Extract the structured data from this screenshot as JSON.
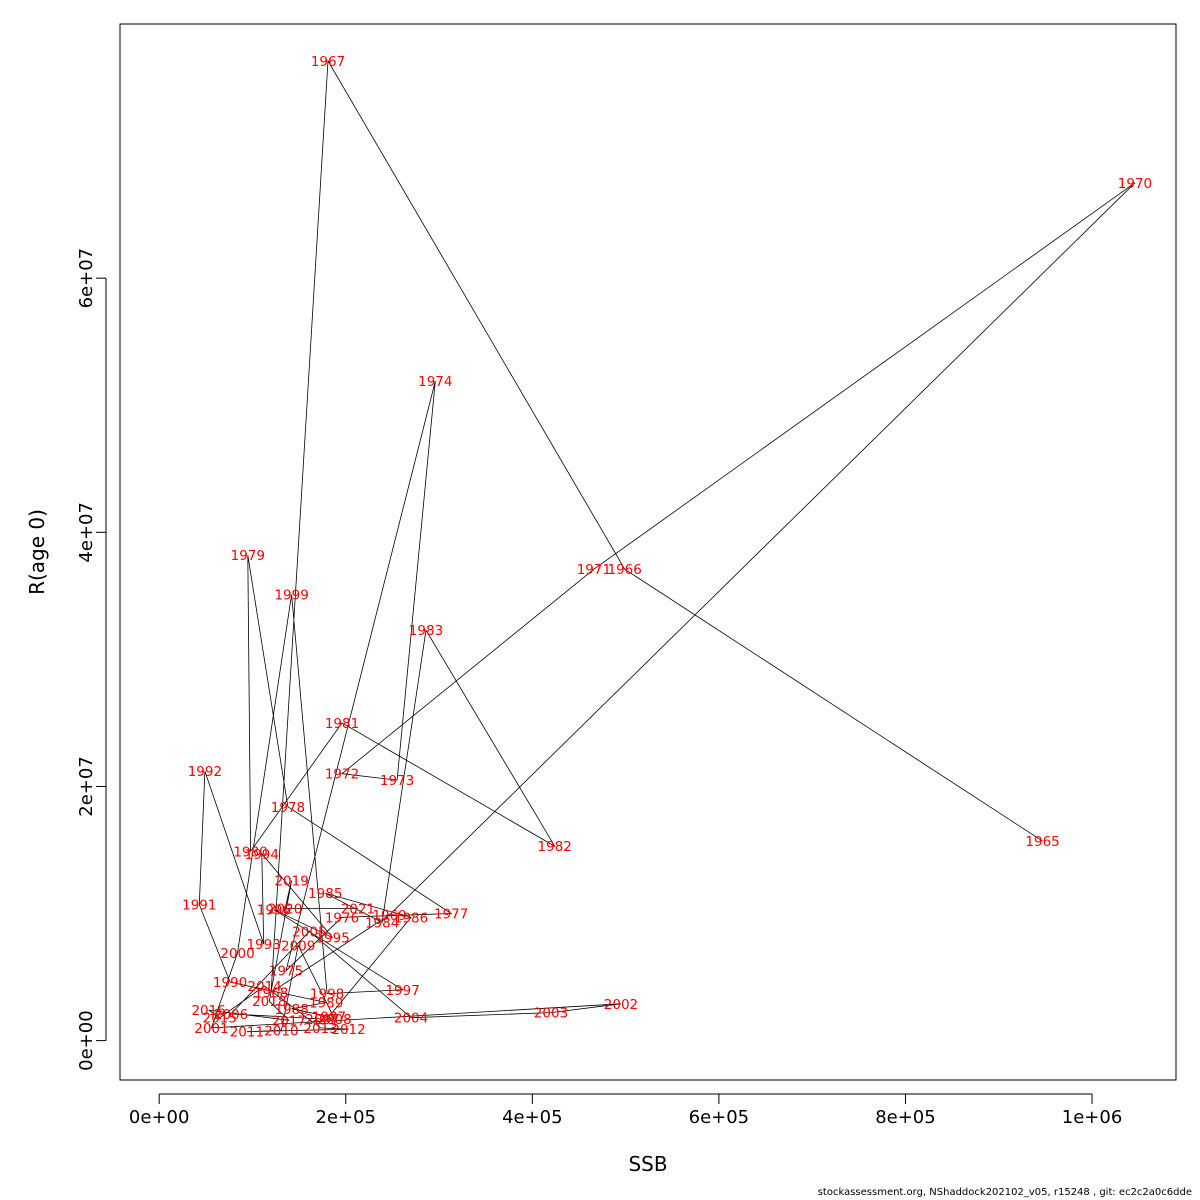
{
  "chart_data": {
    "type": "scatter",
    "connected": true,
    "xlabel": "SSB",
    "ylabel": "R(age 0)",
    "xlim": [
      -42000,
      1090000
    ],
    "ylim": [
      -3100000,
      80000000
    ],
    "x_ticks": [
      0,
      200000,
      400000,
      600000,
      800000,
      1000000
    ],
    "x_tick_labels": [
      "0e+00",
      "2e+05",
      "4e+05",
      "6e+05",
      "8e+05",
      "1e+06"
    ],
    "y_ticks": [
      0,
      20000000,
      40000000,
      60000000
    ],
    "y_tick_labels": [
      "0e+00",
      "2e+07",
      "4e+07",
      "6e+07"
    ],
    "grid": false,
    "line_color": "#000000",
    "label_color": "#ff0000",
    "points": [
      {
        "year": "1965",
        "ssb": 947000,
        "r": 15700000
      },
      {
        "year": "1966",
        "ssb": 499000,
        "r": 37100000
      },
      {
        "year": "1967",
        "ssb": 181000,
        "r": 77100000
      },
      {
        "year": "1968",
        "ssb": 120000,
        "r": 3800000
      },
      {
        "year": "1969",
        "ssb": 247000,
        "r": 9900000
      },
      {
        "year": "1970",
        "ssb": 1046000,
        "r": 67500000
      },
      {
        "year": "1971",
        "ssb": 466000,
        "r": 37100000
      },
      {
        "year": "1972",
        "ssb": 196000,
        "r": 21000000
      },
      {
        "year": "1973",
        "ssb": 255000,
        "r": 20500000
      },
      {
        "year": "1974",
        "ssb": 296000,
        "r": 51900000
      },
      {
        "year": "1975",
        "ssb": 136000,
        "r": 5500000
      },
      {
        "year": "1976",
        "ssb": 196000,
        "r": 9700000
      },
      {
        "year": "1977",
        "ssb": 313000,
        "r": 10000000
      },
      {
        "year": "1978",
        "ssb": 138000,
        "r": 18400000
      },
      {
        "year": "1979",
        "ssb": 95000,
        "r": 38200000
      },
      {
        "year": "1980",
        "ssb": 98000,
        "r": 14900000
      },
      {
        "year": "1981",
        "ssb": 196000,
        "r": 25000000
      },
      {
        "year": "1982",
        "ssb": 424000,
        "r": 15300000
      },
      {
        "year": "1983",
        "ssb": 286000,
        "r": 32300000
      },
      {
        "year": "1984",
        "ssb": 239000,
        "r": 9300000
      },
      {
        "year": "1985",
        "ssb": 178000,
        "r": 11600000
      },
      {
        "year": "1986",
        "ssb": 270000,
        "r": 9700000
      },
      {
        "year": "1987",
        "ssb": 182000,
        "r": 1900000
      },
      {
        "year": "1988",
        "ssb": 142000,
        "r": 2500000
      },
      {
        "year": "1989",
        "ssb": 179000,
        "r": 3000000
      },
      {
        "year": "1990",
        "ssb": 76000,
        "r": 4600000
      },
      {
        "year": "1991",
        "ssb": 43000,
        "r": 10700000
      },
      {
        "year": "1992",
        "ssb": 49000,
        "r": 21200000
      },
      {
        "year": "1993",
        "ssb": 112000,
        "r": 7600000
      },
      {
        "year": "1994",
        "ssb": 110000,
        "r": 14700000
      },
      {
        "year": "1995",
        "ssb": 186000,
        "r": 8100000
      },
      {
        "year": "1996",
        "ssb": 123000,
        "r": 10300000
      },
      {
        "year": "1997",
        "ssb": 261000,
        "r": 4000000
      },
      {
        "year": "1998",
        "ssb": 180000,
        "r": 3700000
      },
      {
        "year": "1999",
        "ssb": 142000,
        "r": 35100000
      },
      {
        "year": "2000",
        "ssb": 84000,
        "r": 6900000
      },
      {
        "year": "2001",
        "ssb": 56000,
        "r": 1000000
      },
      {
        "year": "2002",
        "ssb": 495000,
        "r": 2900000
      },
      {
        "year": "2003",
        "ssb": 420000,
        "r": 2200000
      },
      {
        "year": "2004",
        "ssb": 270000,
        "r": 1800000
      },
      {
        "year": "2005",
        "ssb": 161000,
        "r": 8600000
      },
      {
        "year": "2006",
        "ssb": 77000,
        "r": 2100000
      },
      {
        "year": "2007",
        "ssb": 175000,
        "r": 1700000
      },
      {
        "year": "2008",
        "ssb": 188000,
        "r": 1700000
      },
      {
        "year": "2009",
        "ssb": 149000,
        "r": 7500000
      },
      {
        "year": "2010",
        "ssb": 131000,
        "r": 800000
      },
      {
        "year": "2011",
        "ssb": 94000,
        "r": 700000
      },
      {
        "year": "2012",
        "ssb": 203000,
        "r": 900000
      },
      {
        "year": "2013",
        "ssb": 173000,
        "r": 1000000
      },
      {
        "year": "2014",
        "ssb": 113000,
        "r": 4300000
      },
      {
        "year": "2015",
        "ssb": 65000,
        "r": 1800000
      },
      {
        "year": "2016",
        "ssb": 53000,
        "r": 2400000
      },
      {
        "year": "2017",
        "ssb": 139000,
        "r": 1600000
      },
      {
        "year": "2018",
        "ssb": 118000,
        "r": 3100000
      },
      {
        "year": "2019",
        "ssb": 142000,
        "r": 12600000
      },
      {
        "year": "2020",
        "ssb": 135000,
        "r": 10400000
      },
      {
        "year": "2021",
        "ssb": 213000,
        "r": 10400000
      }
    ]
  },
  "footer": {
    "text": "stockassessment.org, NShaddock202102_v05, r15248 , git: ec2c2a0c6dde"
  }
}
